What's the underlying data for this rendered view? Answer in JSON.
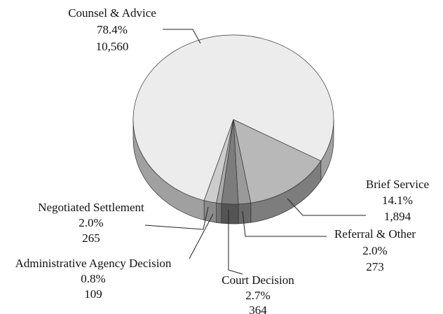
{
  "chart_data": {
    "type": "pie3d",
    "categories": [
      "Counsel & Advice",
      "Brief Service",
      "Referral & Other",
      "Court Decision",
      "Administrative Agency Decision",
      "Negotiated Settlement"
    ],
    "values": [
      78.4,
      14.1,
      2.0,
      2.7,
      0.8,
      2.0
    ],
    "value_labels": [
      "78.4%",
      "14.1%",
      "2.0%",
      "2.7%",
      "0.8%",
      "2.0%"
    ],
    "counts": [
      10560,
      1894,
      273,
      364,
      109,
      265
    ],
    "count_labels": [
      "10,560",
      "1,894",
      "273",
      "364",
      "109",
      "265"
    ],
    "colors": [
      "#ececec",
      "#b8b8b8",
      "#9a9a9a",
      "#7c7c7c",
      "#aaaaaa",
      "#cccccc"
    ]
  }
}
